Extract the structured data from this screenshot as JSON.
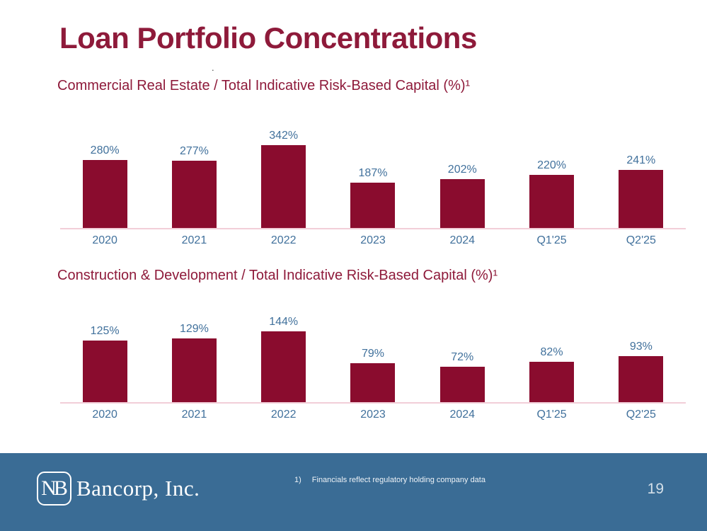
{
  "slide": {
    "title": "Loan Portfolio Concentrations",
    "stray_mark": ".",
    "footnote_marker": "1)",
    "footnote_text": "Financials reflect regulatory holding company data",
    "page_number": "19",
    "logo": {
      "monogram": "NB",
      "company": "Bancorp, Inc."
    }
  },
  "colors": {
    "title_maroon": "#8E1A3A",
    "bar_maroon": "#8A0C2E",
    "label_blue": "#41719C",
    "baseline_pink": "#F2CED8",
    "footer_blue": "#3A6C95",
    "footer_text": "#EDF2F7"
  },
  "chart_data": [
    {
      "type": "bar",
      "title": "Commercial Real Estate / Total Indicative Risk-Based Capital (%)¹",
      "categories": [
        "2020",
        "2021",
        "2022",
        "2023",
        "2024",
        "Q1'25",
        "Q2'25"
      ],
      "values": [
        280,
        277,
        342,
        187,
        202,
        220,
        241
      ],
      "labels": [
        "280%",
        "277%",
        "342%",
        "187%",
        "202%",
        "220%",
        "241%"
      ],
      "xlabel": "",
      "ylabel": "",
      "ylim": [
        0,
        430
      ],
      "grid": false,
      "legend": "none",
      "bar_color": "#8A0C2E",
      "label_color": "#41719C"
    },
    {
      "type": "bar",
      "title": "Construction & Development / Total Indicative Risk-Based Capital (%)¹",
      "categories": [
        "2020",
        "2021",
        "2022",
        "2023",
        "2024",
        "Q1'25",
        "Q2'25"
      ],
      "values": [
        125,
        129,
        144,
        79,
        72,
        82,
        93
      ],
      "labels": [
        "125%",
        "129%",
        "144%",
        "79%",
        "72%",
        "82%",
        "93%"
      ],
      "xlabel": "",
      "ylabel": "",
      "ylim": [
        0,
        205
      ],
      "grid": false,
      "legend": "none",
      "bar_color": "#8A0C2E",
      "label_color": "#41719C"
    }
  ]
}
